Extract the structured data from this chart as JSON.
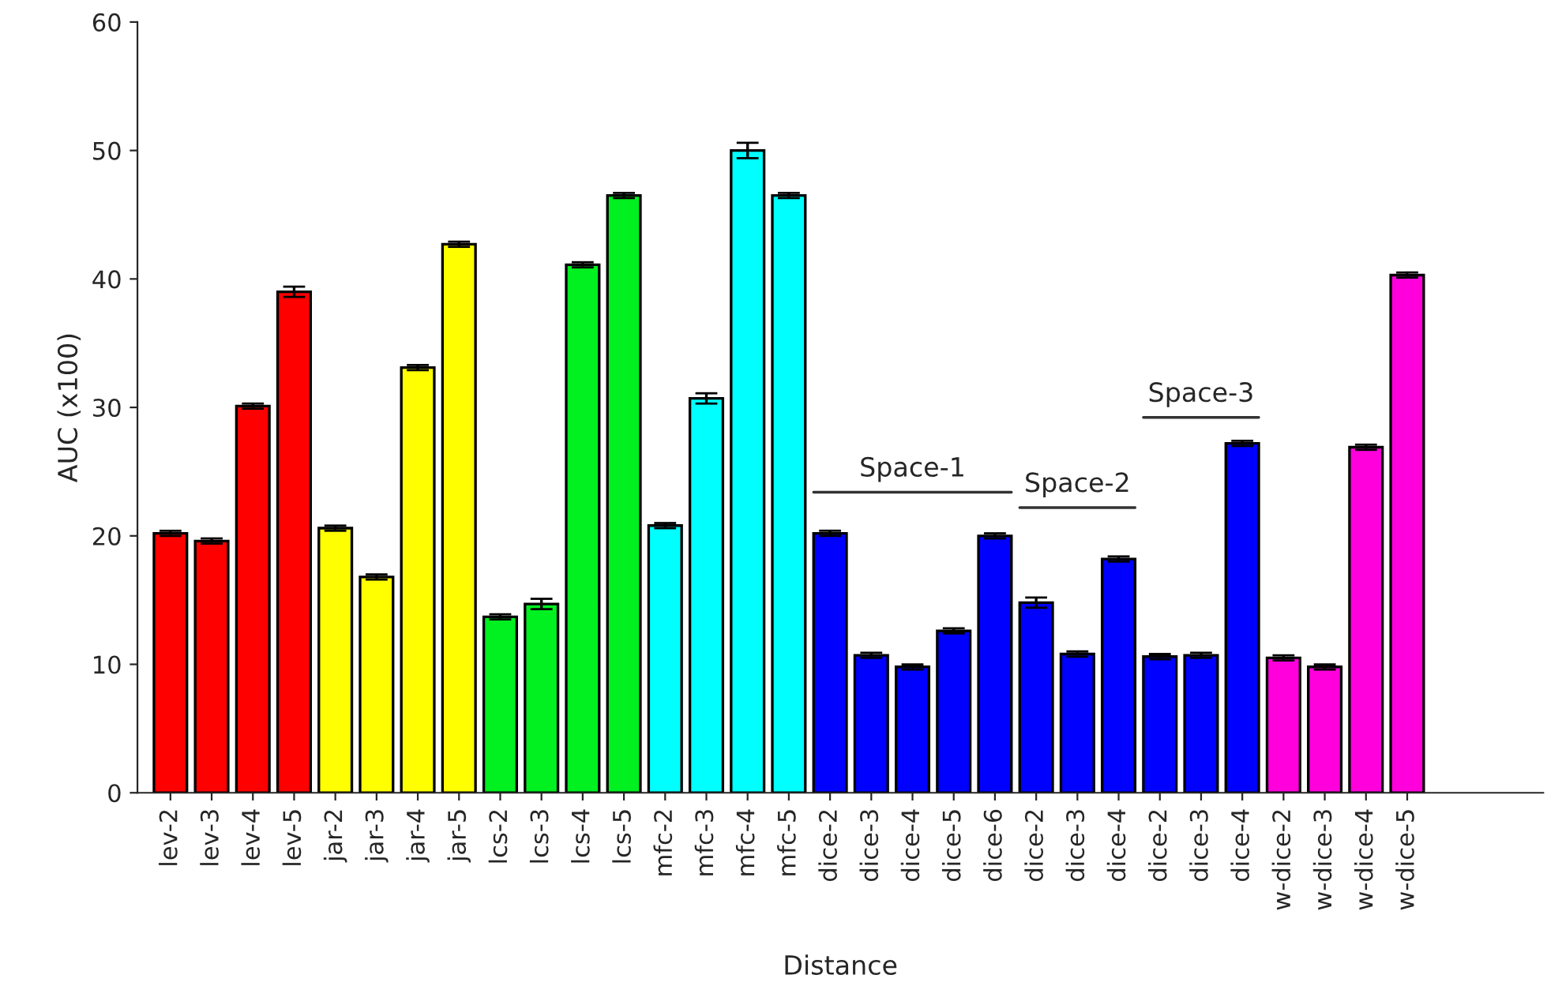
{
  "chart_data": {
    "type": "bar",
    "xlabel": "Distance",
    "ylabel": "AUC (x100)",
    "categories": [
      "lev-2",
      "lev-3",
      "lev-4",
      "lev-5",
      "jar-2",
      "jar-3",
      "jar-4",
      "jar-5",
      "lcs-2",
      "lcs-3",
      "lcs-4",
      "lcs-5",
      "mfc-2",
      "mfc-3",
      "mfc-4",
      "mfc-5",
      "dice-2",
      "dice-3",
      "dice-4",
      "dice-5",
      "dice-6",
      "dice-2",
      "dice-3",
      "dice-4",
      "dice-2",
      "dice-3",
      "dice-4",
      "w-dice-2",
      "w-dice-3",
      "w-dice-4",
      "w-dice-5"
    ],
    "values": [
      20.2,
      19.6,
      30.1,
      39.0,
      20.6,
      16.8,
      33.1,
      42.7,
      13.7,
      14.7,
      41.1,
      46.5,
      20.8,
      30.7,
      50.0,
      46.5,
      20.2,
      10.7,
      9.8,
      12.6,
      20.0,
      14.8,
      10.8,
      18.2,
      10.6,
      10.7,
      27.2,
      10.5,
      9.8,
      26.9,
      40.3
    ],
    "errors": [
      0.2,
      0.2,
      0.2,
      0.4,
      0.2,
      0.2,
      0.2,
      0.2,
      0.2,
      0.4,
      0.2,
      0.2,
      0.2,
      0.4,
      0.6,
      0.2,
      0.2,
      0.2,
      0.2,
      0.2,
      0.2,
      0.4,
      0.2,
      0.2,
      0.2,
      0.2,
      0.2,
      0.2,
      0.2,
      0.2,
      0.2
    ],
    "colors": [
      "#ff0000",
      "#ff0000",
      "#ff0000",
      "#ff0000",
      "#ffff00",
      "#ffff00",
      "#ffff00",
      "#ffff00",
      "#00f020",
      "#00f020",
      "#00f020",
      "#00f020",
      "#00ffff",
      "#00ffff",
      "#00ffff",
      "#00ffff",
      "#0000ff",
      "#0000ff",
      "#0000ff",
      "#0000ff",
      "#0000ff",
      "#0000ff",
      "#0000ff",
      "#0000ff",
      "#0000ff",
      "#0000ff",
      "#0000ff",
      "#ff00dd",
      "#ff00dd",
      "#ff00dd",
      "#ff00dd"
    ],
    "annotations": [
      "Space-1",
      "Space-2",
      "Space-3"
    ],
    "ylim": [
      0,
      60
    ],
    "yticks": [
      0,
      10,
      20,
      30,
      40,
      50,
      60
    ],
    "grid": false,
    "legend": false
  }
}
